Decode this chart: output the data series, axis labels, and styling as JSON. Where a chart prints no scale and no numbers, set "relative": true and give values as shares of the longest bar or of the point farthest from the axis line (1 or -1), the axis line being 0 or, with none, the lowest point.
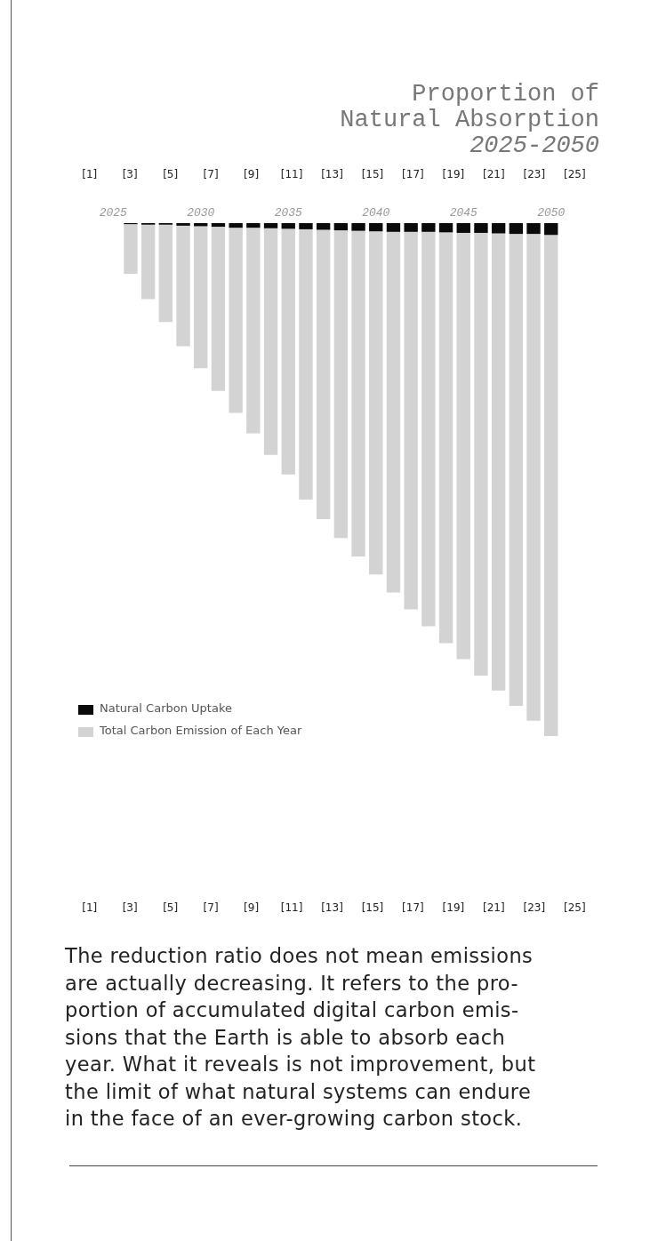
{
  "chart_data": {
    "type": "bar",
    "title": "Proportion of Natural Absorption",
    "subtitle": "2025-2050",
    "relative": true,
    "stacked": true,
    "legend": "bottom left",
    "x": [
      2026,
      2027,
      2028,
      2029,
      2030,
      2031,
      2032,
      2033,
      2034,
      2035,
      2036,
      2037,
      2038,
      2039,
      2040,
      2041,
      2042,
      2043,
      2044,
      2045,
      2046,
      2047,
      2048,
      2049,
      2050
    ],
    "xlim": [
      2025,
      2050
    ],
    "xticks": [
      2025,
      2030,
      2035,
      2040,
      2045,
      2050
    ],
    "series": [
      {
        "name": "Natural Carbon Uptake",
        "color": "#0a0a0a",
        "values": [
          -0.002,
          -0.003,
          -0.003,
          -0.005,
          -0.006,
          -0.007,
          -0.009,
          -0.009,
          -0.01,
          -0.011,
          -0.012,
          -0.013,
          -0.014,
          -0.015,
          -0.016,
          -0.017,
          -0.017,
          -0.017,
          -0.018,
          -0.019,
          -0.019,
          -0.02,
          -0.021,
          -0.021,
          -0.023
        ]
      },
      {
        "name": "Total Carbon Emission of Each Year",
        "color": "#d3d3d3",
        "values": [
          -0.097,
          -0.145,
          -0.19,
          -0.235,
          -0.277,
          -0.32,
          -0.361,
          -0.401,
          -0.442,
          -0.479,
          -0.527,
          -0.564,
          -0.6,
          -0.635,
          -0.669,
          -0.703,
          -0.736,
          -0.769,
          -0.801,
          -0.831,
          -0.863,
          -0.891,
          -0.92,
          -0.949,
          -0.977
        ]
      }
    ],
    "annotations": [
      "[1]",
      "[3]",
      "[5]",
      "[7]",
      "[9]",
      "[11]",
      "[13]",
      "[15]",
      "[17]",
      "[19]",
      "[21]",
      "[23]",
      "[25]",
      "The reduction ratio does not mean emissions\nare actually decreasing. It refers to the pro-\nportion of accumulated digital carbon emis-\nsions that the Earth is able to absorb each\nyear. What it reveals is not improvement, but\nthe limit of what natural systems can endure\nin the face of an ever-growing carbon stock."
    ]
  }
}
